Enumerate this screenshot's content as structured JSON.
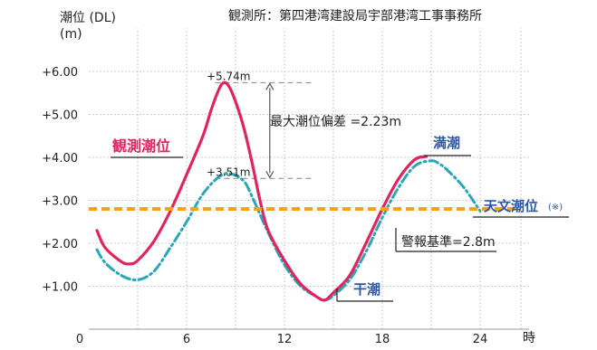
{
  "chart_data": {
    "type": "line",
    "source_note": "観測所：第四港湾建設局宇部港湾工事事務所",
    "ylabel": "潮位 (DL)",
    "yunit": "(m)",
    "xunit": "時",
    "xlim": [
      0,
      27
    ],
    "ylim": [
      0,
      7
    ],
    "xticks": [
      0,
      6,
      12,
      18,
      24
    ],
    "xtick_labels": [
      "0",
      "6",
      "12",
      "18",
      "24"
    ],
    "yticks": [
      1,
      2,
      3,
      4,
      5,
      6
    ],
    "ytick_labels": [
      "+1.00",
      "+2.00",
      "+3.00",
      "+4.00",
      "+5.00",
      "+6.00"
    ],
    "grid": true,
    "colors": {
      "observed": "#e0245e",
      "predicted": "#2aa6b8",
      "warning": "#f5a21b",
      "label_blue": "#2b57a8",
      "grid": "#bbbbbb"
    },
    "series": [
      {
        "name": "観測潮位",
        "style": "solid",
        "x": [
          0.5,
          1,
          2,
          2.5,
          3,
          4,
          5,
          6,
          7,
          7.5,
          8,
          8.3,
          8.6,
          9,
          9.5,
          10,
          10.5,
          11,
          12,
          13,
          14,
          14.5,
          15,
          16,
          17,
          18,
          19,
          20,
          20.7
        ],
        "y": [
          2.3,
          1.9,
          1.57,
          1.52,
          1.6,
          2.05,
          2.75,
          3.6,
          4.5,
          5.1,
          5.6,
          5.74,
          5.65,
          5.3,
          4.7,
          3.9,
          3.0,
          2.3,
          1.6,
          1.05,
          0.75,
          0.68,
          0.85,
          1.25,
          2.0,
          2.8,
          3.5,
          3.95,
          4.02
        ]
      },
      {
        "name": "天文潮位",
        "style": "dash-dot",
        "x": [
          0.5,
          1,
          2,
          3,
          4,
          5,
          6,
          7,
          8,
          8.7,
          9.5,
          10,
          11,
          12,
          13,
          14,
          14.5,
          15,
          16,
          17,
          18,
          19,
          20,
          21,
          21.5,
          22,
          23,
          24
        ],
        "y": [
          1.85,
          1.55,
          1.25,
          1.15,
          1.35,
          1.9,
          2.5,
          3.15,
          3.55,
          3.62,
          3.45,
          3.1,
          2.25,
          1.5,
          1.0,
          0.75,
          0.68,
          0.78,
          1.15,
          1.8,
          2.6,
          3.3,
          3.8,
          3.92,
          3.85,
          3.7,
          3.3,
          2.75
        ]
      }
    ],
    "threshold": {
      "name": "警報基準=2.8m",
      "value": 2.8
    },
    "annotations": {
      "peak_observed": {
        "label": "+5.74m",
        "x": 8.3,
        "y": 5.74
      },
      "peak_predicted": {
        "label": "+3.51m",
        "x": 8.3,
        "y": 3.51
      },
      "deviation": {
        "label": "最大潮位偏差 =2.23m"
      },
      "observed_label": "観測潮位",
      "high_tide": "満潮",
      "low_tide": "干潮",
      "predicted_label": "天文潮位",
      "predicted_note": "(※)"
    }
  }
}
